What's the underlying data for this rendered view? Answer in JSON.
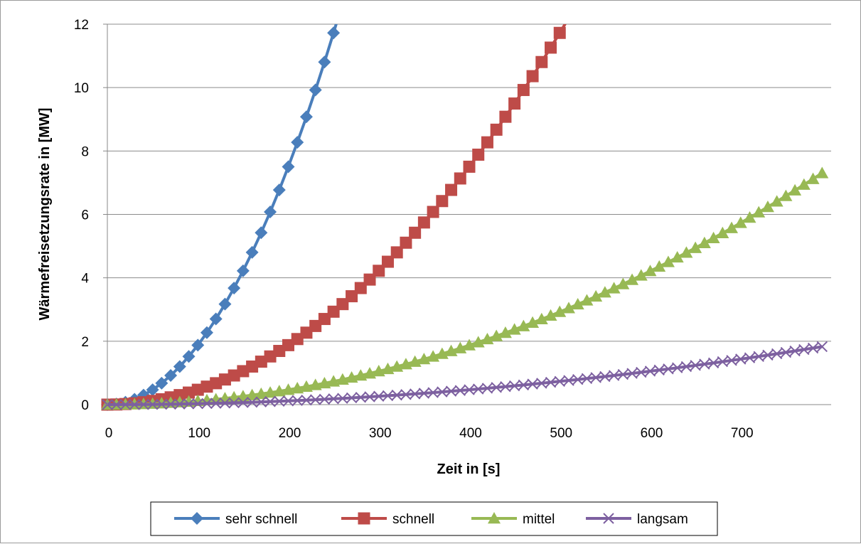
{
  "chart_data": {
    "type": "line",
    "xlabel": "Zeit in [s]",
    "ylabel": "Wärmefreisetzungsrate in [MW]",
    "xlim": [
      0,
      800
    ],
    "ylim": [
      0,
      12
    ],
    "x_ticks": [
      "0",
      "100",
      "200",
      "300",
      "400",
      "500",
      "600",
      "700"
    ],
    "y_ticks": [
      "0",
      "2",
      "4",
      "6",
      "8",
      "10",
      "12"
    ],
    "grid": "horizontal",
    "legend_position": "bottom",
    "series": [
      {
        "name": "sehr schnell",
        "alpha": 0.1876,
        "marker": "diamond",
        "color": "#4a7ebb"
      },
      {
        "name": "schnell",
        "alpha": 0.0469,
        "marker": "square",
        "color": "#be4b48"
      },
      {
        "name": "mittel",
        "alpha": 0.0117,
        "marker": "triangle",
        "color": "#98b954"
      },
      {
        "name": "langsam",
        "alpha": 0.00293,
        "marker": "x",
        "color": "#7d60a0"
      }
    ],
    "formula": "Q = alpha * t^2 / 1000",
    "x_step": 10,
    "x_max": 790
  }
}
